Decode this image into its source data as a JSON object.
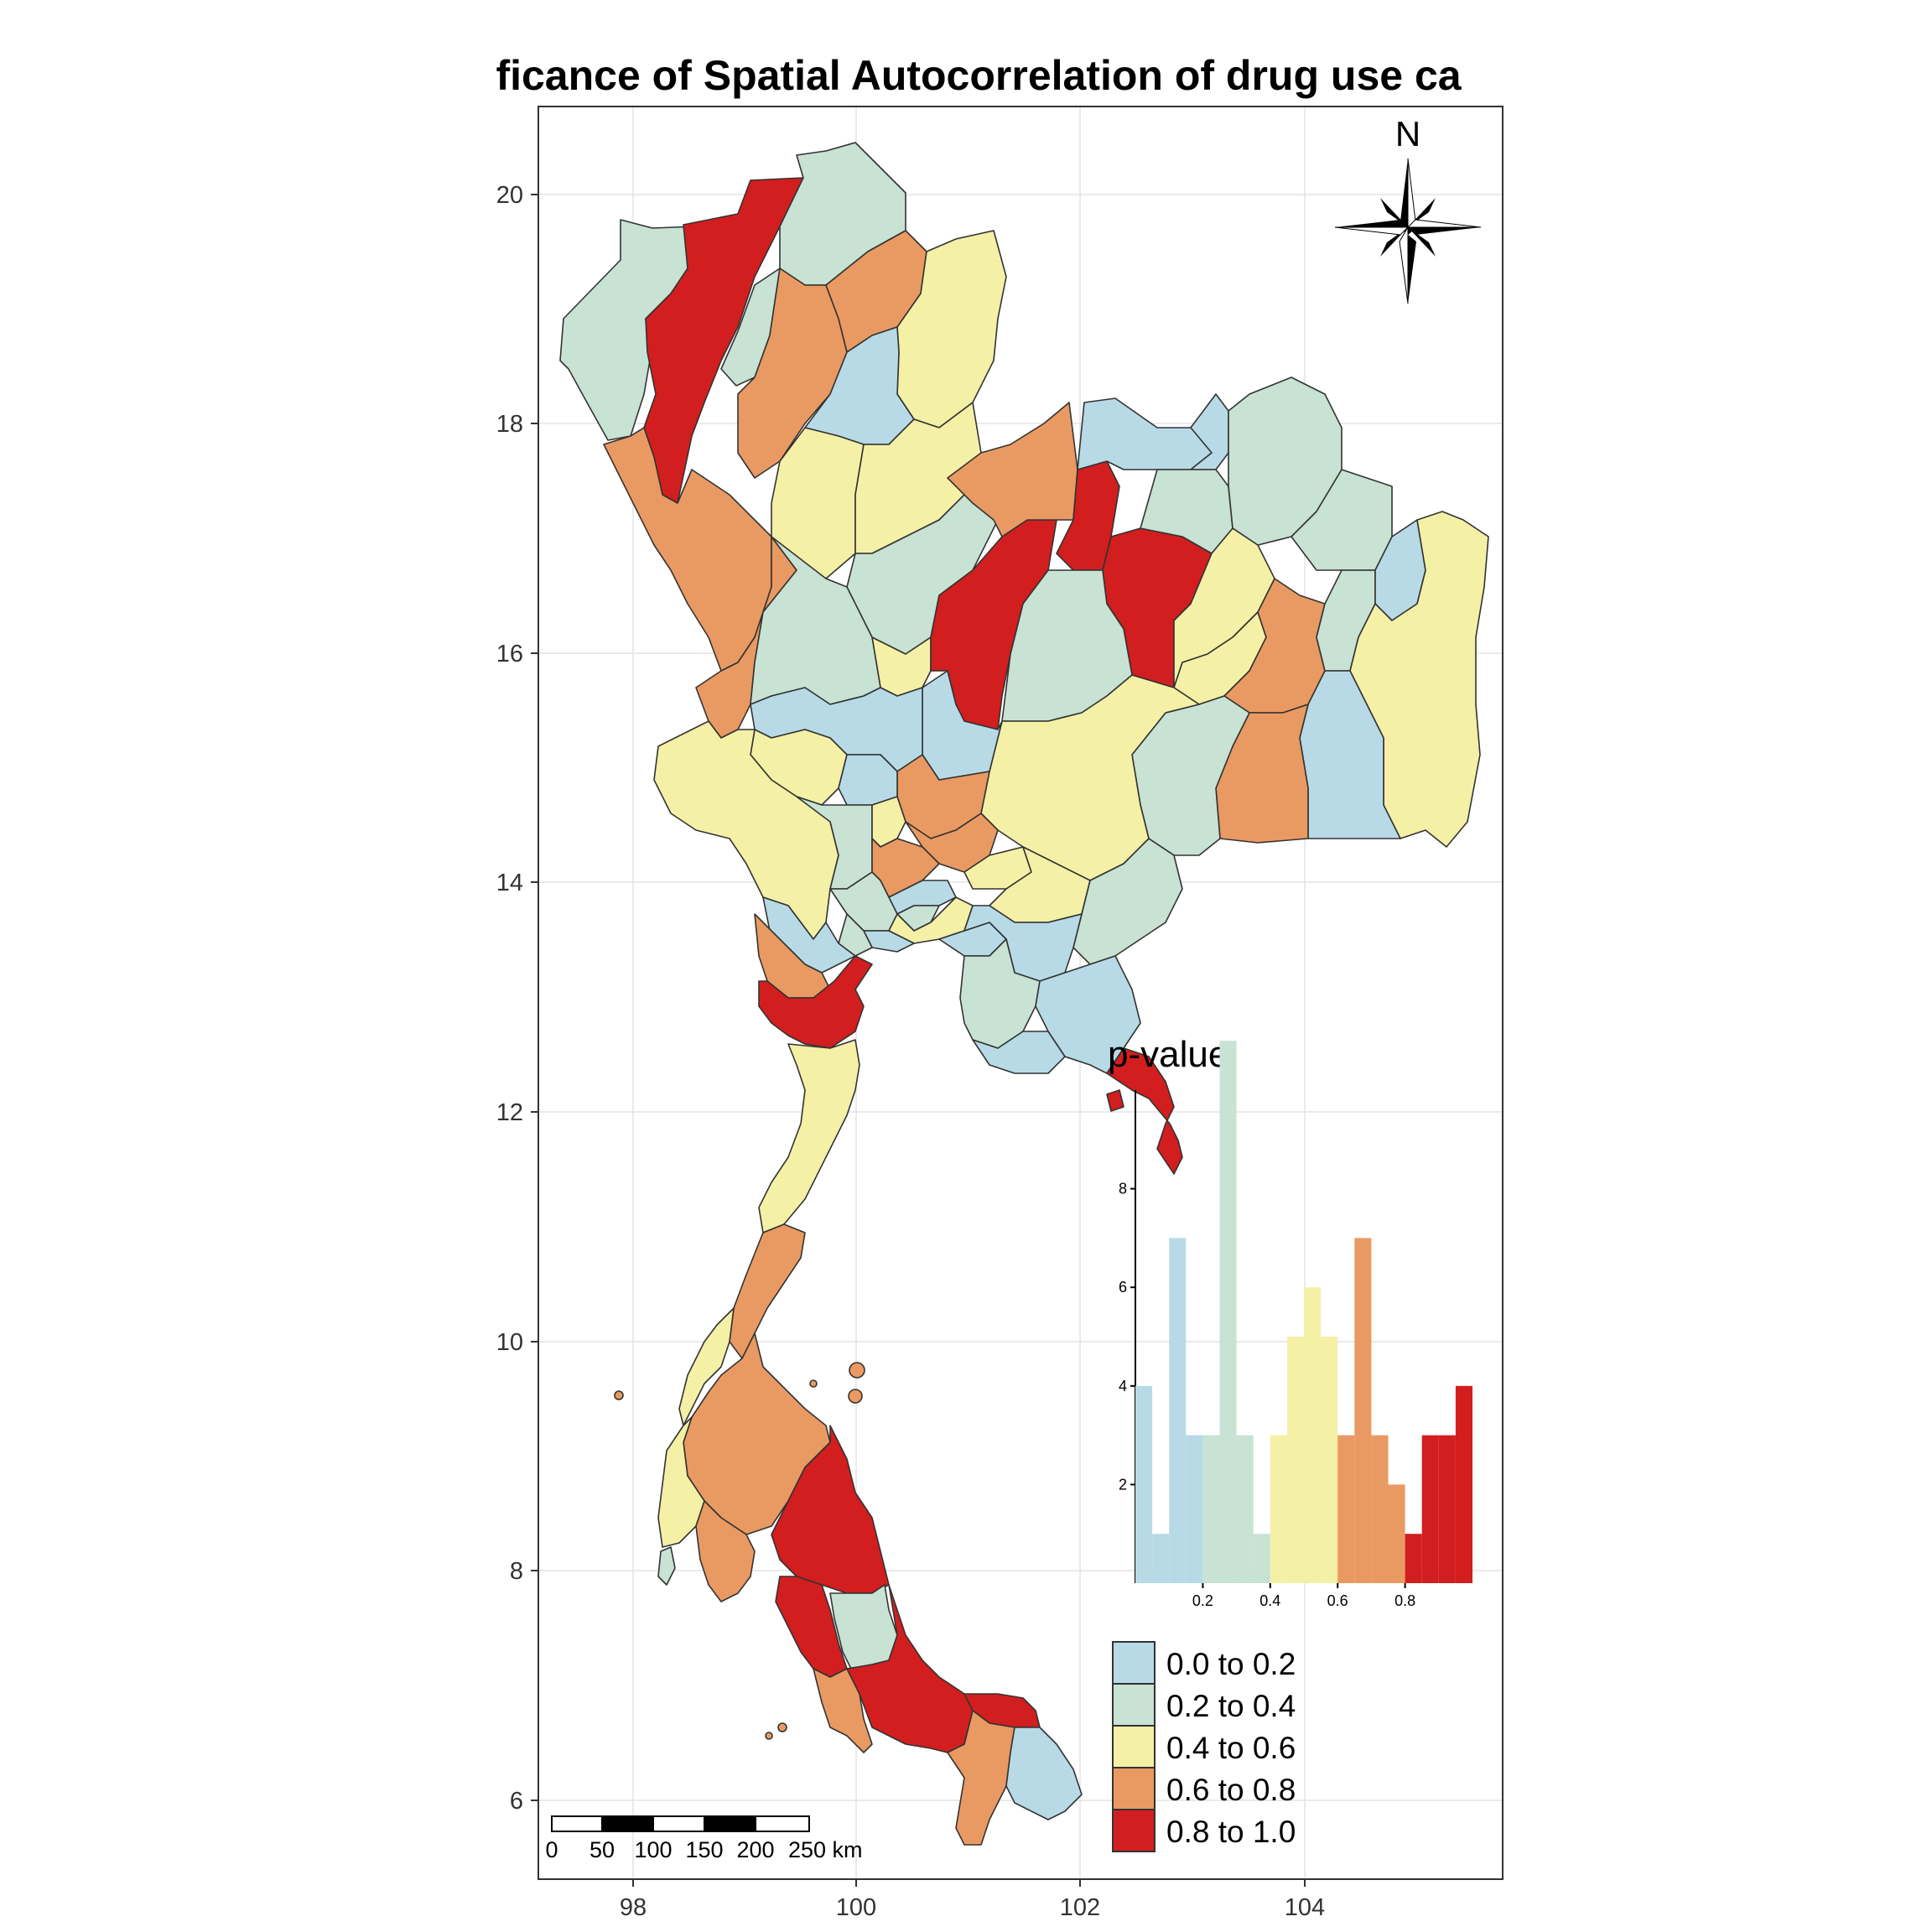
{
  "map": {
    "title": "ficance of Spatial Autocorrelation of drug use ca",
    "x_ticks": [
      "98",
      "100",
      "102",
      "104"
    ],
    "y_ticks": [
      "20",
      "18",
      "16",
      "14",
      "12",
      "10",
      "8",
      "6"
    ],
    "north_label": "N",
    "scale_bar_labels": [
      "0",
      "50",
      "100",
      "150",
      "200",
      "250 km"
    ]
  },
  "colors": {
    "c1": "#b7dae6",
    "c2": "#c8e2d4",
    "c3": "#f4f0a6",
    "c4": "#e99a62",
    "c5": "#d21e1e"
  },
  "legend": {
    "title": "p-value",
    "items": [
      {
        "label": "0.0 to 0.2",
        "color": "#b7dae6"
      },
      {
        "label": "0.2 to 0.4",
        "color": "#c8e2d4"
      },
      {
        "label": "0.4 to 0.6",
        "color": "#f4f0a6"
      },
      {
        "label": "0.6 to 0.8",
        "color": "#e99a62"
      },
      {
        "label": "0.8 to 1.0",
        "color": "#d21e1e"
      }
    ]
  },
  "chart_data": {
    "type": "bar",
    "title": "p-value",
    "x_ticks": [
      "0.2",
      "0.4",
      "0.6",
      "0.8"
    ],
    "y_ticks": [
      "2",
      "4",
      "6",
      "8"
    ],
    "ylim": [
      0,
      10
    ],
    "xlim": [
      0,
      1
    ],
    "bin_width": 0.05,
    "bins_start": [
      0.0,
      0.05,
      0.1,
      0.15,
      0.2,
      0.25,
      0.3,
      0.35,
      0.4,
      0.45,
      0.5,
      0.55,
      0.6,
      0.65,
      0.7,
      0.75,
      0.8,
      0.85,
      0.9,
      0.95
    ],
    "values": [
      4,
      1,
      7,
      3,
      3,
      11,
      3,
      1,
      3,
      5,
      6,
      5,
      3,
      7,
      3,
      2,
      1,
      3,
      3,
      4
    ]
  }
}
